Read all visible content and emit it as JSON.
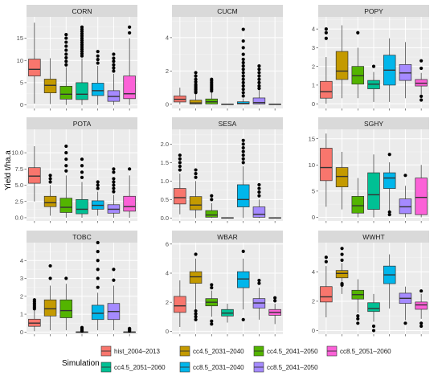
{
  "chart_data": {
    "type": "boxplot",
    "layout": "facet-grid-3x3",
    "ylabel": "Yield t/ha.a",
    "legend": {
      "title": "Simulation",
      "placement": "bottom",
      "items": [
        {
          "label": "hist_2004–2013",
          "color": "#F8766D"
        },
        {
          "label": "cc4.5_2031–2040",
          "color": "#C49A00"
        },
        {
          "label": "cc4.5_2041–2050",
          "color": "#53B400"
        },
        {
          "label": "cc4.5_2051–2060",
          "color": "#00C094"
        },
        {
          "label": "cc8.5_2031–2040",
          "color": "#00B6EB"
        },
        {
          "label": "cc8.5_2041–2050",
          "color": "#A58AFF"
        },
        {
          "label": "cc8.5_2051–2060",
          "color": "#FB61D7"
        }
      ]
    },
    "panels": [
      {
        "title": "CORN",
        "ylim": [
          -0.8,
          19.8
        ],
        "yticks": [
          0,
          5,
          10,
          15
        ],
        "boxes": [
          {
            "min": 0.3,
            "q1": 6.5,
            "median": 8.0,
            "q3": 10.3,
            "max": 18.5,
            "outliers": []
          },
          {
            "min": 0.2,
            "q1": 2.7,
            "median": 4.4,
            "q3": 5.8,
            "max": 10.5,
            "outliers": []
          },
          {
            "min": 0.0,
            "q1": 1.3,
            "median": 2.4,
            "q3": 4.2,
            "max": 8.5,
            "outliers": [
              9.0,
              9.8,
              10.6,
              11.4,
              12.3,
              13.2,
              14.1,
              15.0,
              15.8
            ]
          },
          {
            "min": 0.0,
            "q1": 1.2,
            "median": 2.4,
            "q3": 5.0,
            "max": 10.5,
            "outliers": [
              11.0,
              11.5,
              12.0,
              12.5,
              13.0,
              13.5,
              14.0,
              14.5,
              15.0,
              15.5,
              16.0,
              16.5,
              17.0,
              17.5
            ]
          },
          {
            "min": 0.0,
            "q1": 2.1,
            "median": 3.2,
            "q3": 4.9,
            "max": 8.8,
            "outliers": [
              9.4,
              10.2,
              11.0,
              12.0
            ]
          },
          {
            "min": 0.0,
            "q1": 0.8,
            "median": 1.9,
            "q3": 3.2,
            "max": 7.0,
            "outliers": [
              7.6,
              8.3,
              9.0,
              9.8,
              10.5,
              11.4
            ]
          },
          {
            "min": 0.0,
            "q1": 1.4,
            "median": 2.5,
            "q3": 6.5,
            "max": 15.0,
            "outliers": [
              16.2,
              17.5
            ]
          }
        ]
      },
      {
        "title": "CUCM",
        "ylim": [
          -0.25,
          5.25
        ],
        "yticks": [
          0,
          2,
          4
        ],
        "boxes": [
          {
            "min": 0.0,
            "q1": 0.14,
            "median": 0.3,
            "q3": 0.5,
            "max": 1.0,
            "outliers": []
          },
          {
            "min": 0.0,
            "q1": 0.02,
            "median": 0.08,
            "q3": 0.25,
            "max": 0.6,
            "outliers": [
              0.7,
              0.8,
              0.9,
              1.0,
              1.1,
              1.2,
              1.35,
              1.5,
              1.7,
              1.9
            ]
          },
          {
            "min": 0.0,
            "q1": 0.02,
            "median": 0.15,
            "q3": 0.32,
            "max": 0.7,
            "outliers": [
              0.8,
              0.9,
              1.0,
              1.1,
              1.2,
              1.3,
              1.4,
              1.5
            ]
          },
          {
            "min": 0.0,
            "q1": 0.0,
            "median": 0.0,
            "q3": 0.02,
            "max": 0.04,
            "outliers": []
          },
          {
            "min": 0.0,
            "q1": 0.02,
            "median": 0.05,
            "q3": 0.15,
            "max": 0.35,
            "outliers": [
              0.5,
              0.7,
              0.9,
              1.1,
              1.3,
              1.5,
              1.7,
              1.9,
              2.1,
              2.3,
              2.5,
              2.7,
              3.0,
              3.4,
              3.8,
              4.5
            ]
          },
          {
            "min": 0.0,
            "q1": 0.02,
            "median": 0.1,
            "q3": 0.38,
            "max": 0.85,
            "outliers": [
              0.95,
              1.1,
              1.3,
              1.5,
              1.7,
              1.9,
              2.1,
              2.3
            ]
          },
          {
            "min": 0.0,
            "q1": 0.0,
            "median": 0.0,
            "q3": 0.02,
            "max": 0.04,
            "outliers": []
          }
        ]
      },
      {
        "title": "POPY",
        "ylim": [
          -0.25,
          4.65
        ],
        "yticks": [
          0,
          1,
          2,
          3,
          4
        ],
        "boxes": [
          {
            "min": 0.0,
            "q1": 0.3,
            "median": 0.65,
            "q3": 1.2,
            "max": 2.5,
            "outliers": [
              3.5,
              3.8,
              4.0
            ]
          },
          {
            "min": 0.3,
            "q1": 1.3,
            "median": 1.75,
            "q3": 2.8,
            "max": 4.2,
            "outliers": []
          },
          {
            "min": 0.3,
            "q1": 1.05,
            "median": 1.5,
            "q3": 2.0,
            "max": 3.0,
            "outliers": [
              3.8
            ]
          },
          {
            "min": 0.1,
            "q1": 0.8,
            "median": 1.05,
            "q3": 1.25,
            "max": 1.7,
            "outliers": [
              2.0
            ]
          },
          {
            "min": 0.1,
            "q1": 1.0,
            "median": 1.8,
            "q3": 2.6,
            "max": 3.5,
            "outliers": []
          },
          {
            "min": 0.3,
            "q1": 1.25,
            "median": 1.65,
            "q3": 2.1,
            "max": 3.3,
            "outliers": []
          },
          {
            "min": 0.5,
            "q1": 0.95,
            "median": 1.1,
            "q3": 1.3,
            "max": 1.65,
            "outliers": [
              0.2,
              0.4,
              1.9,
              2.3
            ]
          }
        ]
      },
      {
        "title": "POTA",
        "ylim": [
          -0.5,
          13.6
        ],
        "yticks": [
          0,
          2.5,
          5.0,
          7.5,
          10.0
        ],
        "boxes": [
          {
            "min": 2.5,
            "q1": 5.3,
            "median": 6.4,
            "q3": 7.7,
            "max": 11.0,
            "outliers": []
          },
          {
            "min": 0.3,
            "q1": 1.7,
            "median": 2.3,
            "q3": 3.3,
            "max": 5.0,
            "outliers": [
              5.5,
              6.0,
              6.5
            ]
          },
          {
            "min": 0.0,
            "q1": 0.8,
            "median": 1.6,
            "q3": 3.0,
            "max": 6.5,
            "outliers": [
              7.2,
              8.0,
              9.0,
              10.0,
              11.0
            ]
          },
          {
            "min": 0.0,
            "q1": 0.6,
            "median": 1.3,
            "q3": 2.8,
            "max": 5.5,
            "outliers": [
              6.2,
              7.0,
              8.0,
              9.0
            ]
          },
          {
            "min": 0.3,
            "q1": 1.3,
            "median": 1.9,
            "q3": 2.6,
            "max": 4.0,
            "outliers": [
              4.5,
              5.0,
              5.5
            ]
          },
          {
            "min": 0.0,
            "q1": 0.7,
            "median": 1.3,
            "q3": 2.0,
            "max": 3.5,
            "outliers": [
              4.0,
              4.5,
              5.0,
              5.5,
              6.0,
              7.0,
              7.5
            ]
          },
          {
            "min": 0.0,
            "q1": 1.0,
            "median": 1.7,
            "q3": 3.3,
            "max": 6.5,
            "outliers": [
              7.5
            ]
          }
        ]
      },
      {
        "title": "SESA",
        "ylim": [
          -0.08,
          2.4
        ],
        "yticks": [
          0.0,
          0.5,
          1.0,
          1.5,
          2.0
        ],
        "boxes": [
          {
            "min": 0.1,
            "q1": 0.38,
            "median": 0.55,
            "q3": 0.8,
            "max": 1.2,
            "outliers": [
              1.3,
              1.4,
              1.5,
              1.6,
              1.7
            ]
          },
          {
            "min": 0.0,
            "q1": 0.22,
            "median": 0.35,
            "q3": 0.58,
            "max": 1.0,
            "outliers": [
              1.1,
              1.2,
              1.3
            ]
          },
          {
            "min": 0.0,
            "q1": 0.02,
            "median": 0.08,
            "q3": 0.2,
            "max": 0.4,
            "outliers": [
              0.5,
              0.6
            ]
          },
          {
            "min": 0.0,
            "q1": 0.0,
            "median": 0.0,
            "q3": 0.01,
            "max": 0.02,
            "outliers": []
          },
          {
            "min": 0.0,
            "q1": 0.3,
            "median": 0.5,
            "q3": 0.9,
            "max": 1.4,
            "outliers": [
              1.5,
              1.6,
              1.7,
              1.8,
              1.9,
              2.0,
              2.1
            ]
          },
          {
            "min": 0.0,
            "q1": 0.02,
            "median": 0.1,
            "q3": 0.3,
            "max": 0.5,
            "outliers": [
              0.6,
              0.7,
              0.8,
              0.9
            ]
          },
          {
            "min": 0.0,
            "q1": 0.0,
            "median": 0.0,
            "q3": 0.01,
            "max": 0.02,
            "outliers": []
          }
        ]
      },
      {
        "title": "SGHY",
        "ylim": [
          -0.7,
          16.8
        ],
        "yticks": [
          0,
          5,
          10,
          15
        ],
        "boxes": [
          {
            "min": 2.0,
            "q1": 7.0,
            "median": 9.5,
            "q3": 13.2,
            "max": 16.0,
            "outliers": []
          },
          {
            "min": 1.5,
            "q1": 5.8,
            "median": 7.8,
            "q3": 9.5,
            "max": 12.5,
            "outliers": []
          },
          {
            "min": 0.0,
            "q1": 0.8,
            "median": 2.2,
            "q3": 4.0,
            "max": 7.5,
            "outliers": []
          },
          {
            "min": 0.0,
            "q1": 1.5,
            "median": 4.3,
            "q3": 8.5,
            "max": 12.0,
            "outliers": []
          },
          {
            "min": 1.0,
            "q1": 5.5,
            "median": 7.5,
            "q3": 8.5,
            "max": 10.5,
            "outliers": [
              0.5,
              1.0,
              12.0
            ]
          },
          {
            "min": 0.0,
            "q1": 0.7,
            "median": 2.0,
            "q3": 3.5,
            "max": 6.0,
            "outliers": [
              8.0
            ]
          },
          {
            "min": 0.0,
            "q1": 0.5,
            "median": 3.8,
            "q3": 7.5,
            "max": 10.0,
            "outliers": []
          }
        ]
      },
      {
        "title": "TOBC",
        "ylim": [
          -0.12,
          5.0
        ],
        "yticks": [
          0,
          1,
          2,
          3,
          4
        ],
        "boxes": [
          {
            "min": 0.05,
            "q1": 0.32,
            "median": 0.5,
            "q3": 0.72,
            "max": 1.2,
            "outliers": [
              1.3,
              1.4,
              1.5,
              1.6,
              1.7,
              1.8
            ]
          },
          {
            "min": 0.1,
            "q1": 0.9,
            "median": 1.3,
            "q3": 1.8,
            "max": 2.6,
            "outliers": [
              3.0,
              3.7
            ]
          },
          {
            "min": 0.1,
            "q1": 0.8,
            "median": 1.2,
            "q3": 1.8,
            "max": 2.7,
            "outliers": [
              3.0
            ]
          },
          {
            "min": 0.0,
            "q1": 0.0,
            "median": 0.0,
            "q3": 0.01,
            "max": 0.02,
            "outliers": [
              0.05,
              0.1,
              0.15,
              0.2,
              0.25
            ]
          },
          {
            "min": 0.1,
            "q1": 0.7,
            "median": 1.05,
            "q3": 1.5,
            "max": 2.2,
            "outliers": [
              2.5,
              3.0,
              3.5,
              4.0,
              4.5,
              5.0
            ]
          },
          {
            "min": 0.1,
            "q1": 0.7,
            "median": 1.15,
            "q3": 1.6,
            "max": 2.6,
            "outliers": [
              2.9,
              3.5
            ]
          },
          {
            "min": 0.0,
            "q1": 0.0,
            "median": 0.0,
            "q3": 0.01,
            "max": 0.02,
            "outliers": [
              0.05,
              0.1,
              0.15,
              0.2
            ]
          }
        ]
      },
      {
        "title": "WBAR",
        "ylim": [
          -0.2,
          6.1
        ],
        "yticks": [
          0,
          2,
          4,
          6
        ],
        "boxes": [
          {
            "min": 0.3,
            "q1": 1.3,
            "median": 1.75,
            "q3": 2.4,
            "max": 3.5,
            "outliers": []
          },
          {
            "min": 1.5,
            "q1": 3.3,
            "median": 3.75,
            "q3": 4.1,
            "max": 5.0,
            "outliers": [
              0.8,
              1.0,
              1.2,
              1.4,
              5.3
            ]
          },
          {
            "min": 1.0,
            "q1": 1.75,
            "median": 2.0,
            "q3": 2.25,
            "max": 2.8,
            "outliers": [
              0.5,
              0.7,
              3.0,
              3.2
            ]
          },
          {
            "min": 0.6,
            "q1": 1.05,
            "median": 1.25,
            "q3": 1.5,
            "max": 1.9,
            "outliers": []
          },
          {
            "min": 1.5,
            "q1": 3.0,
            "median": 3.6,
            "q3": 4.1,
            "max": 5.0,
            "outliers": [
              0.8,
              5.5
            ]
          },
          {
            "min": 0.8,
            "q1": 1.6,
            "median": 1.95,
            "q3": 2.25,
            "max": 3.0,
            "outliers": [
              3.3,
              3.5
            ]
          },
          {
            "min": 0.5,
            "q1": 1.1,
            "median": 1.3,
            "q3": 1.5,
            "max": 1.9,
            "outliers": [
              2.1,
              2.3
            ]
          }
        ]
      },
      {
        "title": "WWHT",
        "ylim": [
          -0.25,
          6.0
        ],
        "yticks": [
          0,
          2,
          4
        ],
        "boxes": [
          {
            "min": 0.9,
            "q1": 1.95,
            "median": 2.3,
            "q3": 3.0,
            "max": 4.4,
            "outliers": [
              4.7,
              5.0
            ]
          },
          {
            "min": 2.5,
            "q1": 3.6,
            "median": 3.9,
            "q3": 4.1,
            "max": 4.6,
            "outliers": [
              3.2,
              3.1,
              4.8,
              5.2,
              5.6
            ]
          },
          {
            "min": 1.2,
            "q1": 2.15,
            "median": 2.45,
            "q3": 2.75,
            "max": 3.5,
            "outliers": [
              0.5,
              0.8,
              1.0
            ]
          },
          {
            "min": 0.6,
            "q1": 1.3,
            "median": 1.5,
            "q3": 1.9,
            "max": 2.5,
            "outliers": [
              0.0,
              0.3
            ]
          },
          {
            "min": 1.5,
            "q1": 3.2,
            "median": 3.8,
            "q3": 4.4,
            "max": 5.2,
            "outliers": []
          },
          {
            "min": 0.7,
            "q1": 1.85,
            "median": 2.2,
            "q3": 2.55,
            "max": 3.0,
            "outliers": [
              0.5
            ]
          },
          {
            "min": 0.8,
            "q1": 1.45,
            "median": 1.75,
            "q3": 1.95,
            "max": 2.5,
            "outliers": [
              0.3,
              0.5,
              2.7
            ]
          }
        ]
      }
    ]
  }
}
